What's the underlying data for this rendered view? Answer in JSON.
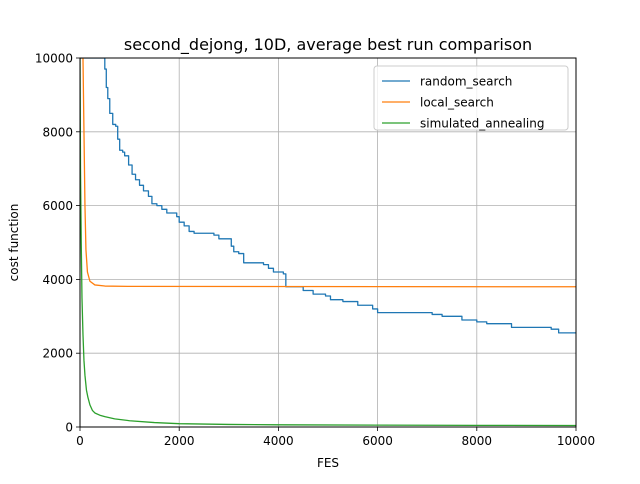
{
  "chart_data": {
    "type": "line",
    "title": "second_dejong, 10D, average best run comparison",
    "xlabel": "FES",
    "ylabel": "cost function",
    "xlim": [
      0,
      10000
    ],
    "ylim": [
      0,
      10000
    ],
    "xticks": [
      0,
      2000,
      4000,
      6000,
      8000,
      10000
    ],
    "yticks": [
      0,
      2000,
      4000,
      6000,
      8000,
      10000
    ],
    "grid": true,
    "legend_position": "top-right",
    "series": [
      {
        "name": "random_search",
        "color": "#1f77b4",
        "step": true,
        "points": [
          [
            0,
            10000
          ],
          [
            480,
            10000
          ],
          [
            500,
            9700
          ],
          [
            530,
            9200
          ],
          [
            560,
            8900
          ],
          [
            600,
            8500
          ],
          [
            660,
            8200
          ],
          [
            720,
            8150
          ],
          [
            760,
            7800
          ],
          [
            800,
            7500
          ],
          [
            860,
            7450
          ],
          [
            900,
            7350
          ],
          [
            980,
            7100
          ],
          [
            1050,
            6850
          ],
          [
            1120,
            6700
          ],
          [
            1200,
            6550
          ],
          [
            1280,
            6400
          ],
          [
            1380,
            6250
          ],
          [
            1450,
            6050
          ],
          [
            1550,
            6000
          ],
          [
            1650,
            5900
          ],
          [
            1750,
            5800
          ],
          [
            1950,
            5700
          ],
          [
            2000,
            5550
          ],
          [
            2100,
            5450
          ],
          [
            2200,
            5300
          ],
          [
            2300,
            5250
          ],
          [
            2700,
            5200
          ],
          [
            2800,
            5100
          ],
          [
            3050,
            4900
          ],
          [
            3100,
            4750
          ],
          [
            3200,
            4700
          ],
          [
            3300,
            4450
          ],
          [
            3700,
            4400
          ],
          [
            3800,
            4300
          ],
          [
            3900,
            4200
          ],
          [
            4100,
            4150
          ],
          [
            4150,
            3800
          ],
          [
            4500,
            3700
          ],
          [
            4700,
            3600
          ],
          [
            4950,
            3550
          ],
          [
            5050,
            3450
          ],
          [
            5300,
            3400
          ],
          [
            5600,
            3300
          ],
          [
            5900,
            3200
          ],
          [
            6000,
            3100
          ],
          [
            7100,
            3050
          ],
          [
            7300,
            3000
          ],
          [
            7700,
            2900
          ],
          [
            8000,
            2850
          ],
          [
            8200,
            2800
          ],
          [
            8700,
            2700
          ],
          [
            9500,
            2650
          ],
          [
            9650,
            2550
          ],
          [
            10000,
            2550
          ]
        ]
      },
      {
        "name": "local_search",
        "color": "#ff7f0e",
        "step": false,
        "points": [
          [
            0,
            10000
          ],
          [
            60,
            10000
          ],
          [
            80,
            8000
          ],
          [
            100,
            6000
          ],
          [
            120,
            4800
          ],
          [
            150,
            4200
          ],
          [
            200,
            3950
          ],
          [
            300,
            3850
          ],
          [
            500,
            3820
          ],
          [
            1000,
            3810
          ],
          [
            10000,
            3800
          ]
        ]
      },
      {
        "name": "simulated_annealing",
        "color": "#2ca02c",
        "step": false,
        "points": [
          [
            0,
            10000
          ],
          [
            10,
            7000
          ],
          [
            25,
            5000
          ],
          [
            40,
            3500
          ],
          [
            60,
            2500
          ],
          [
            80,
            1800
          ],
          [
            100,
            1400
          ],
          [
            130,
            1000
          ],
          [
            160,
            800
          ],
          [
            200,
            600
          ],
          [
            250,
            450
          ],
          [
            300,
            380
          ],
          [
            400,
            320
          ],
          [
            500,
            280
          ],
          [
            700,
            220
          ],
          [
            1000,
            170
          ],
          [
            1500,
            120
          ],
          [
            2000,
            90
          ],
          [
            3000,
            70
          ],
          [
            4000,
            60
          ],
          [
            6000,
            50
          ],
          [
            8000,
            45
          ],
          [
            10000,
            40
          ]
        ]
      }
    ]
  }
}
